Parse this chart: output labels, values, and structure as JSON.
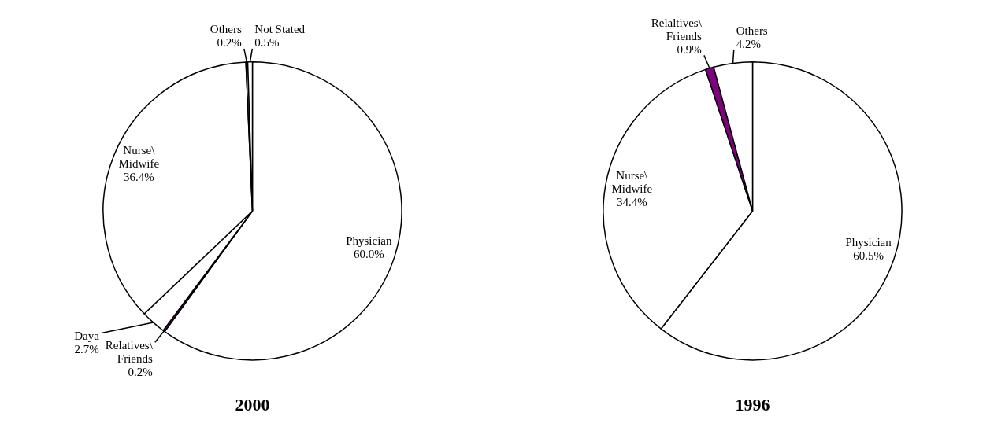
{
  "chart_data": [
    {
      "type": "pie",
      "title": "2000",
      "categories": [
        "Physician",
        "Relatives\\Friends",
        "Daya",
        "Nurse\\Midwife",
        "Others",
        "Not Stated"
      ],
      "values": [
        60.0,
        0.2,
        2.7,
        36.4,
        0.2,
        0.5
      ],
      "value_labels": [
        "60.0%",
        "0.2%",
        "2.7%",
        "36.4%",
        "0.2%",
        "0.5%"
      ],
      "colors": [
        "#ffffff",
        "#800080",
        "#ffffff",
        "#ffffff",
        "#ffffff",
        "#ffffff"
      ]
    },
    {
      "type": "pie",
      "title": "1996",
      "categories": [
        "Physician",
        "Nurse\\Midwife",
        "Relaltives\\Friends",
        "Others"
      ],
      "values": [
        60.5,
        34.4,
        0.9,
        4.2
      ],
      "value_labels": [
        "60.5%",
        "34.4%",
        "0.9%",
        "4.2%"
      ],
      "colors": [
        "#ffffff",
        "#ffffff",
        "#800080",
        "#ffffff"
      ]
    }
  ]
}
